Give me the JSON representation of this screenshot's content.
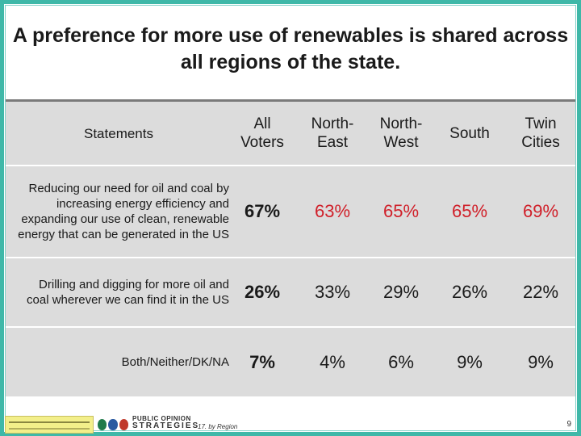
{
  "title": "A preference for more use of renewables is shared across all regions of the state.",
  "table": {
    "headers": [
      "Statements",
      "All Voters",
      "North-East",
      "North-West",
      "South",
      "Twin Cities"
    ],
    "rows": [
      {
        "statement": "Reducing our need for oil and coal by increasing energy efficiency and expanding our use of clean, renewable energy that can be generated in the US",
        "values": [
          "67%",
          "63%",
          "65%",
          "65%",
          "69%"
        ]
      },
      {
        "statement": "Drilling and digging for more oil and coal wherever we can find it in the US",
        "values": [
          "26%",
          "33%",
          "29%",
          "26%",
          "22%"
        ]
      },
      {
        "statement": "Both/Neither/DK/NA",
        "values": [
          "7%",
          "4%",
          "6%",
          "9%",
          "9%"
        ]
      }
    ]
  },
  "footer": {
    "logo_name": "PUBLIC OPINION STRATEGIES",
    "logo_line1": "PUBLIC OPINION",
    "logo_line2": "STRATEGIES",
    "note": "17. by Region",
    "page_number": "9"
  },
  "colors": {
    "frame": "#3fb8a8",
    "highlight": "#d0202a",
    "table_bg": "#dcdcdc"
  }
}
